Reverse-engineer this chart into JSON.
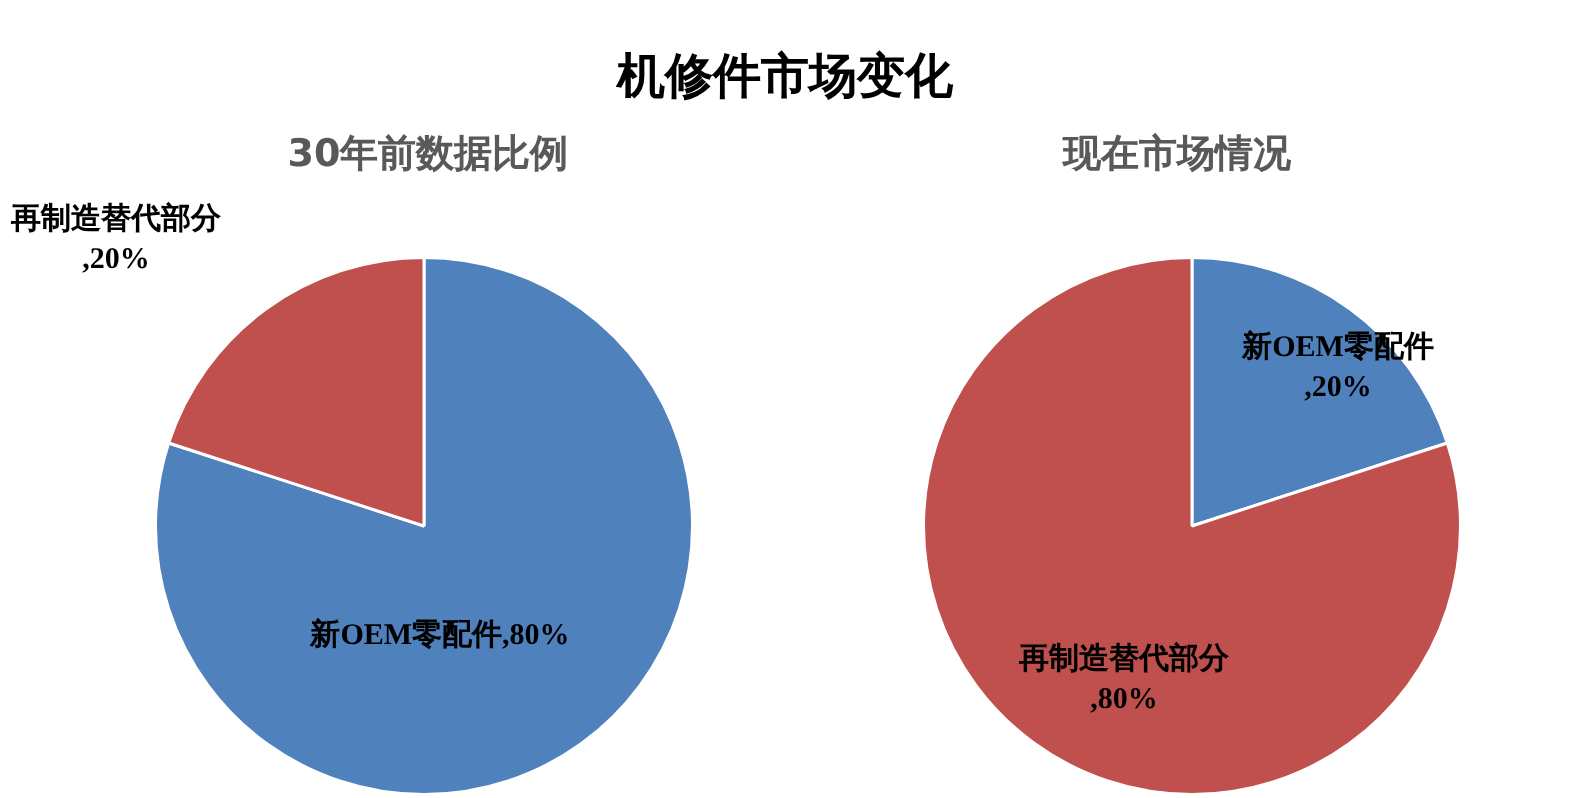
{
  "chart_data": [
    {
      "type": "pie",
      "title": "机修件市场变化",
      "subtitle": "30年前数据比例",
      "categories": [
        "新OEM零配件",
        "再制造替代部分"
      ],
      "values": [
        80,
        20
      ],
      "value_labels": [
        ",80%",
        ",20%"
      ],
      "colors": [
        "#4f81bd",
        "#c0504d"
      ],
      "legend": false
    },
    {
      "type": "pie",
      "subtitle": "现在市场情况",
      "categories": [
        "新OEM零配件",
        "再制造替代部分"
      ],
      "values": [
        20,
        80
      ],
      "value_labels": [
        ",20%",
        ",80%"
      ],
      "colors": [
        "#4f81bd",
        "#c0504d"
      ],
      "legend": false
    }
  ]
}
